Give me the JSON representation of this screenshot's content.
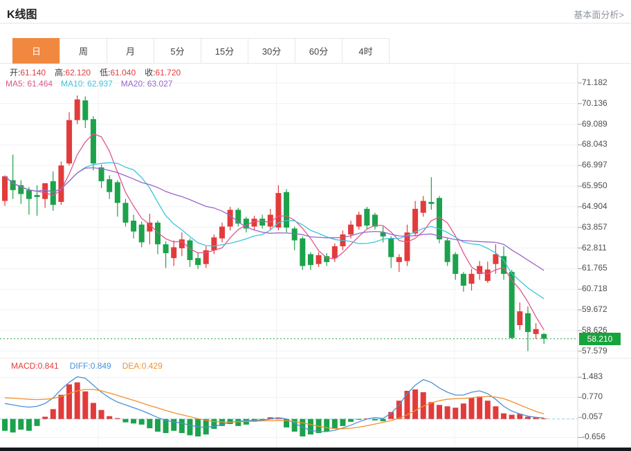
{
  "header": {
    "title": "K线图",
    "link": "基本面分析>"
  },
  "tabs": {
    "items": [
      "日",
      "周",
      "月",
      "5分",
      "15分",
      "30分",
      "60分",
      "4时"
    ],
    "selected": "日"
  },
  "ohlc": {
    "o_label": "开:",
    "o": "61.140",
    "h_label": "高:",
    "h": "62.120",
    "l_label": "低:",
    "l": "61.040",
    "c_label": "收:",
    "c": "61.720"
  },
  "ma": {
    "ma5_label": "MA5: ",
    "ma5": "61.464",
    "ma10_label": "MA10: ",
    "ma10": "62.937",
    "ma20_label": "MA20: ",
    "ma20": "63.027"
  },
  "macd_info": {
    "macd_label": "MACD:",
    "macd": "0.841",
    "diff_label": "DIFF:",
    "diff": "0.849",
    "dea_label": "DEA:",
    "dea": "0.429"
  },
  "price_badge": "58.210",
  "colors": {
    "up": "#e23b3b",
    "down": "#1ca24b",
    "ma5": "#e0558c",
    "ma10": "#3ec3da",
    "ma20": "#9a63ce",
    "diff": "#4a90d9",
    "dea": "#f0912e",
    "badge": "#18a33c",
    "tab_accent": "#f0883f",
    "zero_dash": "#8fd2e2"
  },
  "chart_data": {
    "type": "candlestick+macd",
    "title": "K线图 daily candlestick with MA5/MA10/MA20 overlays and MACD subchart",
    "y_axis": {
      "ticks": [
        "71.182",
        "70.136",
        "69.089",
        "68.043",
        "66.997",
        "65.950",
        "64.904",
        "63.857",
        "62.811",
        "61.765",
        "60.718",
        "59.672",
        "58.626",
        "57.579"
      ]
    },
    "current_price": 58.21,
    "ma_periods": [
      5,
      10,
      20
    ],
    "candles": [
      [
        65.2,
        66.5,
        64.95,
        66.45
      ],
      [
        66.25,
        67.55,
        65.3,
        65.75
      ],
      [
        66.0,
        66.25,
        65.05,
        65.55
      ],
      [
        65.75,
        65.9,
        64.5,
        65.3
      ],
      [
        65.5,
        66.0,
        64.45,
        65.4
      ],
      [
        65.3,
        66.1,
        64.85,
        66.1
      ],
      [
        66.2,
        66.7,
        64.7,
        65.0
      ],
      [
        65.15,
        67.2,
        65.0,
        67.0
      ],
      [
        67.1,
        69.7,
        67.0,
        69.3
      ],
      [
        69.3,
        70.55,
        69.1,
        70.35
      ],
      [
        70.3,
        70.5,
        68.9,
        69.3
      ],
      [
        69.35,
        69.5,
        66.75,
        67.1
      ],
      [
        66.9,
        67.05,
        65.85,
        66.2
      ],
      [
        66.3,
        66.5,
        65.3,
        65.65
      ],
      [
        66.15,
        66.25,
        64.4,
        65.1
      ],
      [
        65.1,
        65.3,
        63.9,
        64.1
      ],
      [
        64.2,
        64.5,
        63.3,
        63.65
      ],
      [
        64.0,
        64.15,
        62.85,
        63.1
      ],
      [
        63.65,
        64.55,
        63.0,
        64.1
      ],
      [
        64.1,
        64.2,
        62.5,
        63.0
      ],
      [
        63.0,
        63.15,
        61.8,
        62.55
      ],
      [
        62.3,
        63.2,
        61.9,
        62.85
      ],
      [
        62.8,
        63.6,
        62.4,
        63.25
      ],
      [
        63.2,
        63.3,
        61.85,
        62.2
      ],
      [
        62.3,
        62.6,
        61.75,
        61.95
      ],
      [
        62.0,
        62.9,
        61.8,
        62.7
      ],
      [
        62.7,
        63.5,
        62.5,
        63.35
      ],
      [
        63.3,
        64.1,
        63.1,
        63.9
      ],
      [
        63.9,
        64.9,
        63.7,
        64.75
      ],
      [
        64.75,
        64.85,
        63.9,
        64.05
      ],
      [
        64.3,
        64.4,
        63.6,
        63.8
      ],
      [
        63.9,
        64.45,
        63.7,
        64.3
      ],
      [
        64.3,
        64.5,
        63.8,
        63.95
      ],
      [
        63.9,
        64.8,
        63.75,
        64.5
      ],
      [
        63.85,
        66.0,
        63.7,
        65.6
      ],
      [
        65.65,
        65.8,
        63.6,
        63.85
      ],
      [
        63.8,
        63.9,
        62.7,
        63.2
      ],
      [
        63.3,
        63.4,
        61.7,
        61.9
      ],
      [
        62.5,
        62.6,
        61.7,
        61.95
      ],
      [
        62.0,
        62.6,
        61.85,
        62.45
      ],
      [
        62.4,
        62.55,
        61.9,
        62.1
      ],
      [
        62.3,
        63.05,
        62.1,
        62.9
      ],
      [
        62.9,
        63.7,
        62.7,
        63.5
      ],
      [
        63.5,
        64.2,
        63.3,
        64.0
      ],
      [
        63.9,
        64.65,
        63.75,
        64.5
      ],
      [
        64.8,
        64.9,
        63.8,
        63.95
      ],
      [
        64.5,
        64.6,
        63.75,
        63.9
      ],
      [
        63.6,
        63.9,
        63.1,
        63.4
      ],
      [
        63.3,
        63.4,
        61.8,
        62.35
      ],
      [
        62.1,
        62.5,
        61.6,
        62.35
      ],
      [
        62.15,
        64.0,
        61.9,
        63.6
      ],
      [
        63.55,
        65.2,
        63.4,
        64.8
      ],
      [
        64.6,
        65.45,
        64.4,
        65.2
      ],
      [
        65.15,
        66.4,
        64.75,
        65.05
      ],
      [
        65.35,
        65.45,
        63.05,
        63.25
      ],
      [
        63.2,
        63.3,
        61.9,
        62.1
      ],
      [
        62.5,
        62.6,
        61.2,
        61.5
      ],
      [
        61.5,
        61.6,
        60.6,
        60.9
      ],
      [
        61.0,
        61.75,
        60.65,
        61.5
      ],
      [
        61.5,
        62.15,
        61.2,
        61.9
      ],
      [
        61.14,
        62.12,
        61.04,
        61.72
      ],
      [
        62.0,
        63.0,
        61.5,
        62.5
      ],
      [
        62.4,
        62.9,
        61.2,
        61.5
      ],
      [
        61.6,
        61.7,
        58.2,
        58.25
      ],
      [
        58.9,
        60.05,
        58.65,
        59.6
      ],
      [
        59.5,
        59.85,
        57.58,
        58.55
      ],
      [
        58.45,
        59.0,
        58.2,
        58.7
      ],
      [
        58.45,
        58.5,
        57.95,
        58.21
      ]
    ],
    "macd": {
      "ticks": [
        "1.483",
        "0.770",
        "0.057",
        "-0.656"
      ],
      "hist": [
        -0.42,
        -0.48,
        -0.38,
        -0.42,
        -0.25,
        0.08,
        0.35,
        0.86,
        1.23,
        1.3,
        0.98,
        0.57,
        0.32,
        0.1,
        0.03,
        -0.12,
        -0.16,
        -0.2,
        -0.33,
        -0.45,
        -0.5,
        -0.42,
        -0.5,
        -0.58,
        -0.62,
        -0.55,
        -0.35,
        -0.25,
        -0.18,
        -0.25,
        -0.2,
        -0.1,
        -0.03,
        0.06,
        0.02,
        -0.3,
        -0.45,
        -0.62,
        -0.55,
        -0.5,
        -0.45,
        -0.35,
        -0.25,
        -0.1,
        -0.03,
        0.02,
        -0.05,
        -0.08,
        0.25,
        0.65,
        1.0,
        1.05,
        0.95,
        0.6,
        0.5,
        0.45,
        0.4,
        0.55,
        0.75,
        0.8,
        0.65,
        0.45,
        0.2,
        0.15,
        0.18,
        0.08,
        0.05,
        0.02
      ],
      "diff": [
        0.55,
        0.5,
        0.45,
        0.42,
        0.45,
        0.55,
        0.75,
        1.05,
        1.3,
        1.5,
        1.45,
        1.2,
        0.95,
        0.75,
        0.6,
        0.5,
        0.4,
        0.3,
        0.18,
        0.05,
        -0.05,
        -0.1,
        -0.15,
        -0.22,
        -0.28,
        -0.3,
        -0.26,
        -0.2,
        -0.12,
        -0.08,
        -0.06,
        -0.05,
        -0.04,
        0.0,
        0.05,
        0.0,
        -0.15,
        -0.3,
        -0.4,
        -0.45,
        -0.45,
        -0.4,
        -0.32,
        -0.22,
        -0.1,
        0.0,
        0.05,
        0.02,
        0.2,
        0.5,
        0.9,
        1.2,
        1.4,
        1.3,
        1.1,
        0.95,
        0.85,
        0.85,
        0.95,
        1.0,
        0.9,
        0.7,
        0.45,
        0.28,
        0.18,
        0.1,
        0.06,
        0.04
      ],
      "dea": [
        0.75,
        0.74,
        0.72,
        0.7,
        0.69,
        0.7,
        0.73,
        0.8,
        0.9,
        1.0,
        1.05,
        1.05,
        1.0,
        0.92,
        0.84,
        0.75,
        0.66,
        0.57,
        0.48,
        0.39,
        0.3,
        0.22,
        0.15,
        0.08,
        0.01,
        -0.05,
        -0.09,
        -0.11,
        -0.11,
        -0.1,
        -0.09,
        -0.08,
        -0.07,
        -0.06,
        -0.05,
        -0.06,
        -0.09,
        -0.14,
        -0.2,
        -0.26,
        -0.31,
        -0.34,
        -0.35,
        -0.33,
        -0.29,
        -0.24,
        -0.18,
        -0.12,
        -0.06,
        0.03,
        0.15,
        0.3,
        0.45,
        0.57,
        0.65,
        0.7,
        0.72,
        0.73,
        0.75,
        0.78,
        0.8,
        0.78,
        0.72,
        0.62,
        0.5,
        0.38,
        0.27,
        0.18
      ]
    }
  }
}
